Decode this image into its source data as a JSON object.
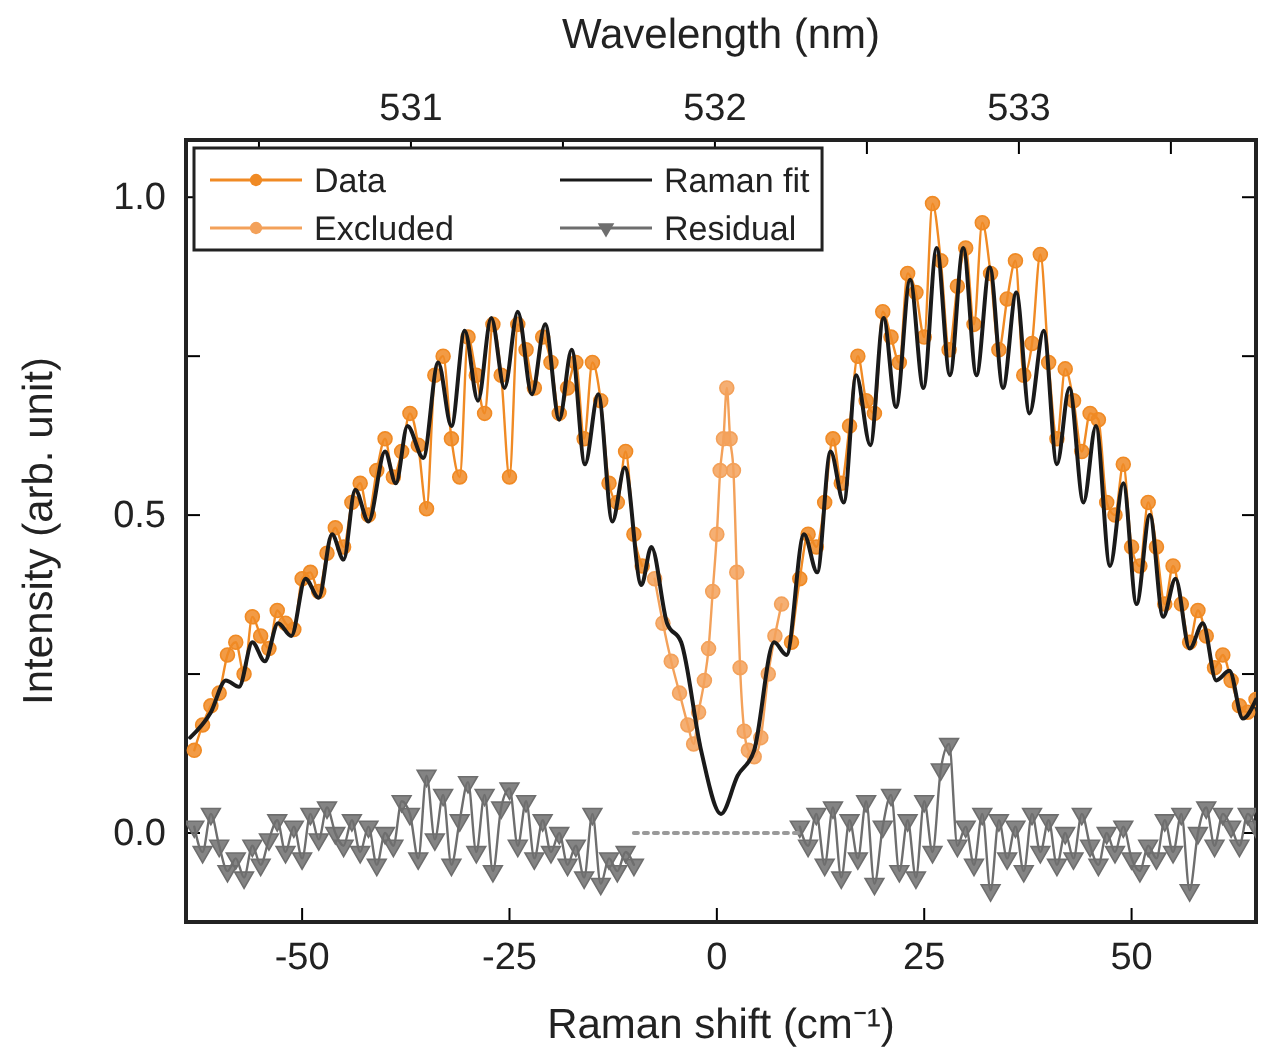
{
  "chart_data": {
    "type": "line",
    "xlabel": "Raman shift (cm⁻¹)",
    "ylabel": "Intensity (arb. unit)",
    "x2label": "Wavelength (nm)",
    "xlim": [
      -64,
      65
    ],
    "xticks": [
      -50,
      -25,
      0,
      25,
      50
    ],
    "x2lim": [
      530.26,
      533.78
    ],
    "x2ticks": [
      {
        "value": 530.5,
        "label": null
      },
      531,
      {
        "value": 531.5,
        "label": null
      },
      532,
      {
        "value": 532.5,
        "label": null
      },
      533,
      {
        "value": 533.5,
        "label": null
      }
    ],
    "ylim": [
      -0.14,
      1.09
    ],
    "yticks": [
      {
        "value": 0,
        "label": "0.0"
      },
      {
        "value": 0.25,
        "label": null
      },
      {
        "value": 0.5,
        "label": "0.5"
      },
      {
        "value": 0.75,
        "label": null
      },
      {
        "value": 1,
        "label": "1.0"
      }
    ],
    "legend": "top left",
    "grid": false,
    "series": [
      {
        "name": "Data",
        "color": "#f08a24",
        "marker": "circle",
        "x": [
          -63,
          -62,
          -61,
          -60,
          -59,
          -58,
          -57,
          -56,
          -55,
          -54,
          -53,
          -52,
          -51,
          -50,
          -49,
          -48,
          -47,
          -46,
          -45,
          -44,
          -43,
          -42,
          -41,
          -40,
          -39,
          -38,
          -37,
          -36,
          -35,
          -34,
          -33,
          -32,
          -31,
          -30,
          -29,
          -28,
          -27,
          -26,
          -25,
          -24,
          -23,
          -22,
          -21,
          -20,
          -19,
          -18,
          -17,
          -16,
          -15,
          -14,
          -13,
          -12,
          -11,
          -10,
          -9,
          null,
          9,
          10,
          11,
          12,
          13,
          14,
          15,
          16,
          17,
          18,
          19,
          20,
          21,
          22,
          23,
          24,
          25,
          26,
          27,
          28,
          29,
          30,
          31,
          32,
          33,
          34,
          35,
          36,
          37,
          38,
          39,
          40,
          41,
          42,
          43,
          44,
          45,
          46,
          47,
          48,
          49,
          50,
          51,
          52,
          53,
          54,
          55,
          56,
          57,
          58,
          59,
          60,
          61,
          62,
          63,
          64,
          65
        ],
        "values": [
          0.13,
          0.17,
          0.2,
          0.22,
          0.28,
          0.3,
          0.25,
          0.34,
          0.31,
          0.29,
          0.35,
          0.33,
          0.32,
          0.4,
          0.41,
          0.38,
          0.44,
          0.48,
          0.45,
          0.52,
          0.55,
          0.5,
          0.57,
          0.62,
          0.56,
          0.6,
          0.66,
          0.61,
          0.51,
          0.72,
          0.75,
          0.62,
          0.56,
          0.78,
          0.72,
          0.66,
          0.8,
          0.72,
          0.56,
          0.8,
          0.76,
          0.7,
          0.78,
          0.74,
          0.66,
          0.7,
          0.74,
          0.62,
          0.74,
          0.68,
          0.55,
          0.52,
          0.6,
          0.47,
          0.42,
          null,
          0.3,
          0.4,
          0.47,
          0.45,
          0.52,
          0.62,
          0.55,
          0.64,
          0.75,
          0.68,
          0.66,
          0.82,
          0.78,
          0.74,
          0.88,
          0.85,
          0.78,
          0.99,
          0.9,
          0.76,
          0.86,
          0.92,
          0.8,
          0.96,
          0.88,
          0.76,
          0.84,
          0.9,
          0.72,
          0.77,
          0.91,
          0.74,
          0.62,
          0.73,
          0.68,
          0.6,
          0.66,
          0.65,
          0.52,
          0.5,
          0.58,
          0.45,
          0.42,
          0.52,
          0.45,
          0.36,
          0.42,
          0.36,
          0.3,
          0.35,
          0.31,
          0.26,
          0.28,
          0.24,
          0.2,
          0.19,
          0.21
        ]
      },
      {
        "name": "Excluded",
        "color": "#f3a15a",
        "marker": "circle",
        "x": [
          -7.5,
          -6.5,
          -5.5,
          -4.5,
          -3.5,
          -2.8,
          -2.2,
          -1.5,
          -1.0,
          -0.5,
          0,
          0.4,
          0.8,
          1.2,
          1.6,
          2.0,
          2.4,
          2.8,
          3.3,
          3.8,
          4.5,
          5.3,
          6.2,
          7.0,
          7.8
        ],
        "values": [
          0.4,
          0.33,
          0.27,
          0.22,
          0.17,
          0.14,
          0.19,
          0.24,
          0.29,
          0.38,
          0.47,
          0.57,
          0.62,
          0.7,
          0.62,
          0.57,
          0.41,
          0.26,
          0.16,
          0.13,
          0.12,
          0.15,
          0.25,
          0.31,
          0.36
        ]
      },
      {
        "name": "Raman fit",
        "color": "#1a1a1a",
        "marker": "none",
        "x": [
          -63.5,
          -61,
          -59.2,
          -57.6,
          -56,
          -54.5,
          -52.9,
          -51.3,
          -49.6,
          -48,
          -46.4,
          -45,
          -43.6,
          -42,
          -40,
          -38.7,
          -37.3,
          -35.4,
          -33.6,
          -32,
          -30.4,
          -28.8,
          -27.2,
          -25.6,
          -24,
          -22.3,
          -20.7,
          -19,
          -17.5,
          -15.9,
          -14.3,
          -12.6,
          -11.1,
          -9.1,
          -7.9,
          -6,
          -4.3,
          -1.9,
          0.5,
          2.5,
          4.5,
          6.9,
          8.4,
          10.5,
          12.1,
          13.7,
          15.3,
          16.8,
          18.5,
          20.1,
          21.6,
          23.3,
          24.9,
          26.5,
          28.1,
          29.7,
          31.3,
          32.9,
          34.5,
          36.1,
          37.7,
          39.4,
          41,
          42.5,
          44.2,
          45.7,
          47.4,
          49,
          50.6,
          52.2,
          53.8,
          55.3,
          57,
          58.6,
          60.2,
          61.8,
          63.4,
          65
        ],
        "values": [
          0.15,
          0.19,
          0.24,
          0.23,
          0.3,
          0.27,
          0.33,
          0.31,
          0.4,
          0.37,
          0.47,
          0.43,
          0.54,
          0.49,
          0.6,
          0.55,
          0.64,
          0.59,
          0.74,
          0.64,
          0.79,
          0.68,
          0.81,
          0.7,
          0.82,
          0.69,
          0.8,
          0.65,
          0.76,
          0.58,
          0.69,
          0.49,
          0.575,
          0.39,
          0.45,
          0.33,
          0.3,
          0.13,
          0.03,
          0.09,
          0.13,
          0.3,
          0.28,
          0.47,
          0.41,
          0.6,
          0.52,
          0.72,
          0.61,
          0.81,
          0.67,
          0.87,
          0.7,
          0.92,
          0.72,
          0.92,
          0.72,
          0.89,
          0.7,
          0.85,
          0.66,
          0.79,
          0.58,
          0.7,
          0.52,
          0.64,
          0.42,
          0.55,
          0.36,
          0.5,
          0.34,
          0.4,
          0.29,
          0.33,
          0.24,
          0.255,
          0.18,
          0.21
        ]
      },
      {
        "name": "Residual",
        "color": "#6e6e6e",
        "marker": "triangle",
        "x": [
          -63,
          -62,
          -61,
          -60,
          -59,
          -58,
          -57,
          -56,
          -55,
          -54,
          -53,
          -52,
          -51,
          -50,
          -49,
          -48,
          -47,
          -46,
          -45,
          -44,
          -43,
          -42,
          -41,
          -40,
          -39,
          -38,
          -37,
          -36,
          -35,
          -34,
          -33,
          -32,
          -31,
          -30,
          -29,
          -28,
          -27,
          -26,
          -25,
          -24,
          -23,
          -22,
          -21,
          -20,
          -19,
          -18,
          -17,
          -16,
          -15,
          -14,
          -13,
          -12,
          -11,
          -10,
          null,
          10,
          11,
          12,
          13,
          14,
          15,
          16,
          17,
          18,
          19,
          20,
          21,
          22,
          23,
          24,
          25,
          26,
          27,
          28,
          29,
          30,
          31,
          32,
          33,
          34,
          35,
          36,
          37,
          38,
          39,
          40,
          41,
          42,
          43,
          44,
          45,
          46,
          47,
          48,
          49,
          50,
          51,
          52,
          53,
          54,
          55,
          56,
          57,
          58,
          59,
          60,
          61,
          62,
          63,
          64,
          65
        ],
        "values": [
          0.01,
          -0.03,
          0.03,
          -0.02,
          -0.06,
          -0.04,
          -0.07,
          -0.02,
          -0.05,
          -0.01,
          0.02,
          -0.03,
          0.01,
          -0.04,
          0.03,
          -0.01,
          0.04,
          0.0,
          -0.02,
          0.02,
          -0.03,
          0.01,
          -0.05,
          0.0,
          -0.02,
          0.05,
          0.03,
          -0.04,
          0.09,
          -0.01,
          0.06,
          -0.05,
          0.02,
          0.08,
          -0.03,
          0.06,
          -0.06,
          0.04,
          0.07,
          -0.02,
          0.05,
          -0.04,
          0.02,
          -0.03,
          0.0,
          -0.05,
          -0.02,
          -0.07,
          0.03,
          -0.08,
          -0.04,
          -0.06,
          -0.03,
          -0.05,
          null,
          0.01,
          -0.02,
          0.03,
          -0.05,
          0.04,
          -0.07,
          0.02,
          -0.04,
          0.05,
          -0.08,
          0.01,
          0.06,
          -0.06,
          0.02,
          -0.07,
          0.05,
          -0.03,
          0.1,
          0.14,
          -0.02,
          0.01,
          -0.05,
          0.03,
          -0.09,
          0.02,
          -0.04,
          0.01,
          -0.06,
          0.03,
          -0.03,
          0.02,
          -0.05,
          0.0,
          -0.04,
          0.03,
          -0.02,
          -0.05,
          0.0,
          -0.03,
          0.01,
          -0.04,
          -0.06,
          -0.02,
          -0.04,
          0.02,
          -0.03,
          0.03,
          -0.09,
          0.0,
          0.04,
          -0.02,
          0.03,
          0.01,
          -0.02,
          0.03,
          0.01
        ]
      },
      {
        "color": "#9a9a9a",
        "marker": "none",
        "line_style": "dotted",
        "x": [
          -10,
          10
        ],
        "values": [
          0,
          0
        ]
      }
    ]
  }
}
